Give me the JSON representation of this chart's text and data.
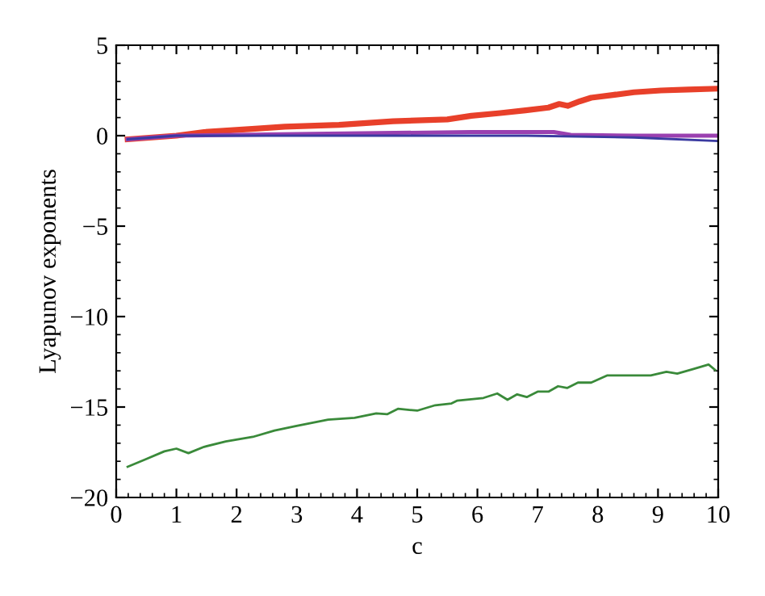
{
  "chart_data": {
    "type": "line",
    "xlabel": "c",
    "ylabel": "Lyapunov exponents",
    "xlim": [
      0,
      10
    ],
    "xticks": [
      0,
      1,
      2,
      3,
      4,
      5,
      6,
      7,
      8,
      9,
      10
    ],
    "ylim": [
      -20,
      5
    ],
    "yticks": [
      {
        "value": -20,
        "label": "−20"
      },
      {
        "value": -15,
        "label": "−15"
      },
      {
        "value": -10,
        "label": "−10"
      },
      {
        "value": -5,
        "label": "−5"
      },
      0,
      5
    ],
    "grid": false,
    "legend": false,
    "marker": "none",
    "line_style": "solid",
    "series": [
      {
        "color": "#e8402a",
        "x": [
          0.19,
          1.0,
          1.46,
          2.36,
          2.8,
          3.7,
          4.6,
          5.5,
          5.9,
          6.38,
          6.8,
          7.18,
          7.36,
          7.5,
          7.7,
          7.89,
          8.25,
          8.6,
          9.05,
          9.5,
          10
        ],
        "values": [
          -0.2,
          0,
          0.2,
          0.4,
          0.5,
          0.6,
          0.8,
          0.9,
          1.1,
          1.25,
          1.4,
          1.55,
          1.75,
          1.65,
          1.9,
          2.1,
          2.25,
          2.4,
          2.5,
          2.55,
          2.6
        ]
      },
      {
        "color": "#9a40b0",
        "x": [
          0.19,
          1.0,
          3.25,
          5.9,
          7.27,
          7.55,
          8.6,
          10
        ],
        "values": [
          -0.2,
          0,
          0.1,
          0.2,
          0.2,
          0.05,
          0,
          0
        ]
      },
      {
        "color": "#3a3aa0",
        "x": [
          0.19,
          1.0,
          4.14,
          6.82,
          8.6,
          10
        ],
        "values": [
          -0.2,
          0,
          0,
          0,
          -0.1,
          -0.3
        ]
      },
      {
        "color": "#3a8a3a",
        "x": [
          0.19,
          0.48,
          0.8,
          1.0,
          1.2,
          1.46,
          1.82,
          2.27,
          2.63,
          2.98,
          3.52,
          3.96,
          4.32,
          4.5,
          4.68,
          5.0,
          5.3,
          5.57,
          5.66,
          6.1,
          6.33,
          6.5,
          6.66,
          6.82,
          7.0,
          7.18,
          7.34,
          7.49,
          7.67,
          7.89,
          8.16,
          8.47,
          8.88,
          9.14,
          9.32,
          9.59,
          9.84,
          9.95
        ],
        "values": [
          -18.3,
          -17.9,
          -17.45,
          -17.3,
          -17.55,
          -17.2,
          -16.9,
          -16.65,
          -16.3,
          -16.05,
          -15.7,
          -15.6,
          -15.35,
          -15.4,
          -15.1,
          -15.2,
          -14.9,
          -14.8,
          -14.65,
          -14.5,
          -14.25,
          -14.6,
          -14.3,
          -14.45,
          -14.15,
          -14.15,
          -13.85,
          -13.95,
          -13.65,
          -13.65,
          -13.25,
          -13.25,
          -13.25,
          -13.05,
          -13.15,
          -12.9,
          -12.65,
          -12.95
        ]
      }
    ]
  }
}
